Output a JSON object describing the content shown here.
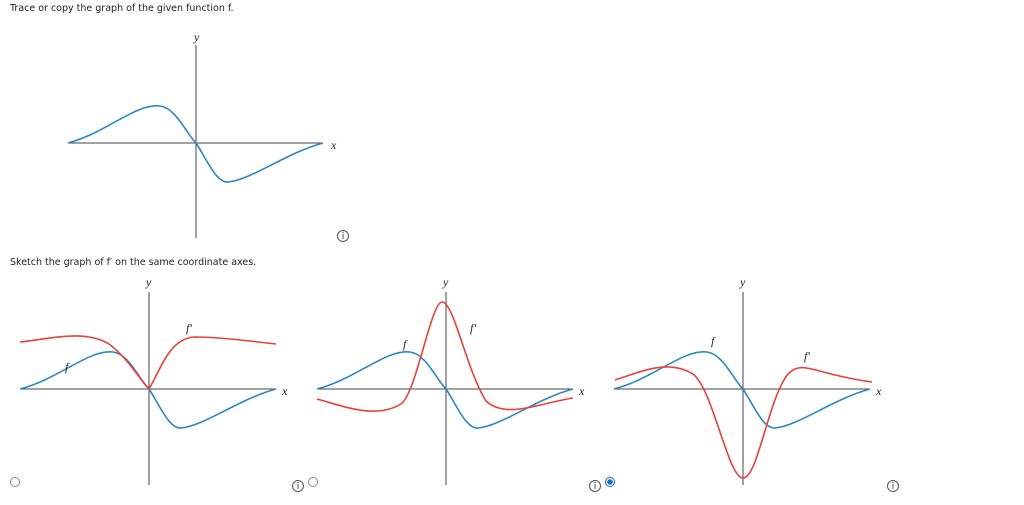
{
  "question": {
    "prompt": "Trace or copy the graph of the given function f.",
    "graph": {
      "y_label": "y",
      "x_label": "x"
    }
  },
  "part": {
    "prompt": "Sketch the graph of f′ on the same coordinate axes."
  },
  "options": [
    {
      "y_label": "y",
      "x_label": "x",
      "f_label": "f",
      "fprime_label": "f′",
      "selected": false
    },
    {
      "y_label": "y",
      "x_label": "x",
      "f_label": "f",
      "fprime_label": "f′",
      "selected": false
    },
    {
      "y_label": "y",
      "x_label": "x",
      "f_label": "f",
      "fprime_label": "f′",
      "selected": true
    }
  ]
}
